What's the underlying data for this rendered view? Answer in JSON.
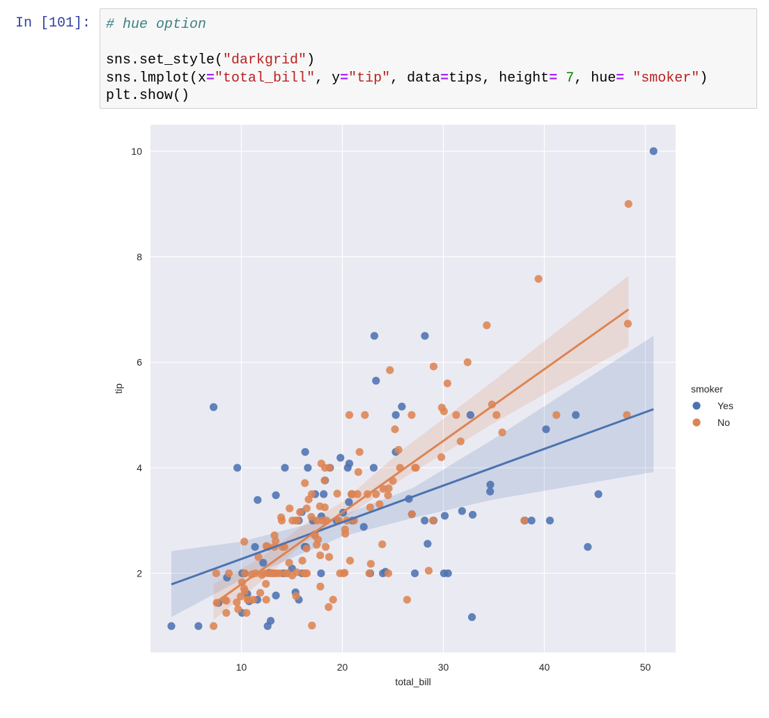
{
  "cell": {
    "prompt": "In [101]:",
    "code_lines": [
      [
        {
          "t": "# hue option",
          "c": "comment"
        }
      ],
      [],
      [
        {
          "t": "sns.set_style(",
          "c": "plain"
        },
        {
          "t": "\"darkgrid\"",
          "c": "str"
        },
        {
          "t": ")",
          "c": "plain"
        }
      ],
      [
        {
          "t": "sns.lmplot(x",
          "c": "plain"
        },
        {
          "t": "=",
          "c": "op"
        },
        {
          "t": "\"total_bill\"",
          "c": "str"
        },
        {
          "t": ", y",
          "c": "plain"
        },
        {
          "t": "=",
          "c": "op"
        },
        {
          "t": "\"tip\"",
          "c": "str"
        },
        {
          "t": ", data",
          "c": "plain"
        },
        {
          "t": "=",
          "c": "op"
        },
        {
          "t": "tips, height",
          "c": "plain"
        },
        {
          "t": "=",
          "c": "op"
        },
        {
          "t": " ",
          "c": "plain"
        },
        {
          "t": "7",
          "c": "num"
        },
        {
          "t": ", hue",
          "c": "plain"
        },
        {
          "t": "=",
          "c": "op"
        },
        {
          "t": " ",
          "c": "plain"
        },
        {
          "t": "\"smoker\"",
          "c": "str"
        },
        {
          "t": ")",
          "c": "plain"
        }
      ],
      [
        {
          "t": "plt.show()",
          "c": "plain"
        }
      ]
    ]
  },
  "chart_data": {
    "type": "scatter",
    "title": "",
    "xlabel": "total_bill",
    "ylabel": "tip",
    "xlim": [
      1,
      53
    ],
    "ylim": [
      0.5,
      10.5
    ],
    "xticks": [
      10,
      20,
      30,
      40,
      50
    ],
    "yticks": [
      2,
      4,
      6,
      8,
      10
    ],
    "grid": true,
    "background": "#eaeaf2",
    "legend": {
      "title": "smoker",
      "placement": "right"
    },
    "series": [
      {
        "name": "Yes",
        "color": "#4c72b0",
        "points": [
          [
            3.07,
            1.0
          ],
          [
            5.75,
            1.0
          ],
          [
            7.25,
            5.15
          ],
          [
            7.74,
            1.44
          ],
          [
            8.58,
            1.92
          ],
          [
            9.6,
            4.0
          ],
          [
            10.07,
            1.25
          ],
          [
            10.09,
            2.0
          ],
          [
            10.33,
            2.0
          ],
          [
            10.59,
            1.61
          ],
          [
            10.77,
            1.47
          ],
          [
            11.35,
            2.5
          ],
          [
            11.59,
            1.5
          ],
          [
            11.61,
            3.39
          ],
          [
            12.16,
            2.2
          ],
          [
            12.6,
            1.0
          ],
          [
            12.9,
            1.1
          ],
          [
            12.74,
            2.01
          ],
          [
            13.42,
            3.48
          ],
          [
            13.42,
            1.58
          ],
          [
            14.15,
            2.0
          ],
          [
            14.31,
            4.0
          ],
          [
            15.02,
            2.09
          ],
          [
            15.36,
            1.64
          ],
          [
            15.69,
            1.5
          ],
          [
            15.69,
            3.0
          ],
          [
            15.98,
            3.16
          ],
          [
            16.27,
            2.5
          ],
          [
            16.4,
            2.5
          ],
          [
            16.32,
            4.3
          ],
          [
            16.58,
            4.0
          ],
          [
            16.0,
            2.0
          ],
          [
            17.07,
            3.0
          ],
          [
            17.31,
            3.5
          ],
          [
            17.89,
            2.0
          ],
          [
            17.92,
            3.08
          ],
          [
            18.15,
            3.5
          ],
          [
            18.29,
            3.76
          ],
          [
            18.78,
            4.0
          ],
          [
            19.44,
            3.0
          ],
          [
            19.81,
            4.19
          ],
          [
            20.08,
            3.15
          ],
          [
            20.53,
            4.0
          ],
          [
            20.69,
            4.08
          ],
          [
            20.65,
            3.35
          ],
          [
            20.92,
            3.5
          ],
          [
            21.01,
            3.0
          ],
          [
            22.12,
            2.88
          ],
          [
            22.76,
            2.0
          ],
          [
            23.1,
            4.0
          ],
          [
            23.17,
            6.5
          ],
          [
            23.33,
            5.65
          ],
          [
            24.01,
            2.0
          ],
          [
            24.27,
            2.03
          ],
          [
            25.29,
            5.0
          ],
          [
            25.28,
            4.3
          ],
          [
            25.89,
            5.16
          ],
          [
            26.59,
            3.41
          ],
          [
            26.88,
            3.12
          ],
          [
            27.18,
            2.0
          ],
          [
            28.15,
            3.0
          ],
          [
            28.17,
            6.5
          ],
          [
            28.44,
            2.56
          ],
          [
            29.03,
            3.0
          ],
          [
            30.06,
            2.0
          ],
          [
            30.46,
            2.0
          ],
          [
            30.14,
            3.09
          ],
          [
            31.85,
            3.18
          ],
          [
            32.68,
            5.0
          ],
          [
            32.9,
            3.11
          ],
          [
            32.83,
            1.17
          ],
          [
            34.63,
            3.55
          ],
          [
            34.65,
            3.68
          ],
          [
            38.07,
            3.0
          ],
          [
            38.73,
            3.0
          ],
          [
            40.17,
            4.73
          ],
          [
            40.55,
            3.0
          ],
          [
            43.11,
            5.0
          ],
          [
            44.3,
            2.5
          ],
          [
            45.35,
            3.5
          ],
          [
            50.81,
            10.0
          ]
        ],
        "fit": {
          "x": [
            3.07,
            50.81
          ],
          "y": [
            1.79,
            5.11
          ]
        },
        "ci_upper": [
          [
            3.07,
            2.42
          ],
          [
            10,
            2.6
          ],
          [
            20,
            3.1
          ],
          [
            27,
            3.62
          ],
          [
            35,
            4.55
          ],
          [
            50.81,
            6.5
          ]
        ],
        "ci_lower": [
          [
            3.07,
            1.17
          ],
          [
            10,
            1.88
          ],
          [
            20,
            2.7
          ],
          [
            27,
            3.05
          ],
          [
            35,
            3.4
          ],
          [
            50.81,
            3.92
          ]
        ]
      },
      {
        "name": "No",
        "color": "#dd8452",
        "points": [
          [
            7.25,
            1.0
          ],
          [
            7.51,
            2.0
          ],
          [
            7.56,
            1.44
          ],
          [
            8.35,
            1.5
          ],
          [
            8.51,
            1.25
          ],
          [
            8.52,
            1.48
          ],
          [
            8.77,
            2.0
          ],
          [
            9.55,
            1.45
          ],
          [
            9.68,
            1.32
          ],
          [
            9.94,
            1.56
          ],
          [
            10.07,
            1.83
          ],
          [
            10.27,
            1.71
          ],
          [
            10.29,
            2.6
          ],
          [
            10.34,
            1.66
          ],
          [
            10.33,
            2.0
          ],
          [
            10.51,
            1.25
          ],
          [
            10.63,
            1.5
          ],
          [
            10.65,
            1.5
          ],
          [
            11.02,
            1.98
          ],
          [
            11.17,
            1.5
          ],
          [
            11.38,
            2.0
          ],
          [
            11.69,
            2.31
          ],
          [
            11.87,
            1.63
          ],
          [
            12.02,
            1.97
          ],
          [
            12.26,
            2.0
          ],
          [
            12.43,
            1.8
          ],
          [
            12.46,
            1.5
          ],
          [
            12.48,
            2.52
          ],
          [
            12.54,
            2.5
          ],
          [
            12.66,
            2.5
          ],
          [
            12.69,
            2.0
          ],
          [
            13.0,
            2.0
          ],
          [
            13.03,
            2.0
          ],
          [
            13.13,
            2.0
          ],
          [
            13.27,
            2.5
          ],
          [
            13.28,
            2.72
          ],
          [
            13.37,
            2.0
          ],
          [
            13.39,
            2.61
          ],
          [
            13.51,
            2.0
          ],
          [
            13.81,
            2.0
          ],
          [
            13.94,
            3.06
          ],
          [
            14.0,
            3.0
          ],
          [
            14.07,
            2.5
          ],
          [
            14.26,
            2.5
          ],
          [
            14.48,
            2.0
          ],
          [
            14.52,
            2.0
          ],
          [
            14.73,
            2.2
          ],
          [
            14.78,
            3.23
          ],
          [
            15.04,
            1.96
          ],
          [
            15.06,
            3.0
          ],
          [
            15.38,
            3.0
          ],
          [
            15.42,
            1.57
          ],
          [
            15.48,
            2.02
          ],
          [
            15.53,
            3.0
          ],
          [
            15.81,
            3.16
          ],
          [
            16.04,
            2.24
          ],
          [
            16.21,
            2.0
          ],
          [
            16.29,
            3.71
          ],
          [
            16.31,
            2.0
          ],
          [
            16.45,
            2.47
          ],
          [
            16.47,
            3.23
          ],
          [
            16.49,
            2.0
          ],
          [
            16.66,
            3.4
          ],
          [
            16.93,
            3.07
          ],
          [
            16.97,
            3.5
          ],
          [
            16.99,
            1.01
          ],
          [
            17.26,
            2.74
          ],
          [
            17.29,
            2.71
          ],
          [
            17.46,
            2.54
          ],
          [
            17.51,
            3.0
          ],
          [
            17.59,
            2.64
          ],
          [
            17.78,
            3.27
          ],
          [
            17.81,
            2.34
          ],
          [
            17.82,
            1.75
          ],
          [
            17.92,
            4.08
          ],
          [
            18.04,
            3.0
          ],
          [
            18.24,
            3.76
          ],
          [
            18.26,
            3.25
          ],
          [
            18.28,
            4.0
          ],
          [
            18.35,
            2.5
          ],
          [
            18.43,
            3.0
          ],
          [
            18.64,
            1.36
          ],
          [
            18.69,
            2.31
          ],
          [
            18.71,
            4.0
          ],
          [
            19.08,
            1.5
          ],
          [
            19.49,
            3.51
          ],
          [
            19.65,
            3.0
          ],
          [
            19.77,
            2.0
          ],
          [
            20.23,
            2.01
          ],
          [
            20.27,
            2.83
          ],
          [
            20.29,
            2.75
          ],
          [
            20.45,
            3.0
          ],
          [
            20.76,
            2.24
          ],
          [
            20.9,
            3.5
          ],
          [
            21.01,
            3.5
          ],
          [
            21.16,
            3.0
          ],
          [
            21.5,
            3.5
          ],
          [
            21.58,
            3.92
          ],
          [
            21.7,
            4.3
          ],
          [
            22.23,
            5.0
          ],
          [
            22.49,
            3.5
          ],
          [
            22.67,
            2.0
          ],
          [
            22.75,
            3.25
          ],
          [
            23.68,
            3.31
          ],
          [
            23.95,
            2.55
          ],
          [
            24.06,
            3.6
          ],
          [
            24.55,
            2.0
          ],
          [
            24.71,
            5.85
          ],
          [
            25.0,
            3.75
          ],
          [
            25.56,
            4.34
          ],
          [
            25.71,
            4.0
          ],
          [
            26.41,
            1.5
          ],
          [
            26.88,
            3.12
          ],
          [
            27.2,
            4.0
          ],
          [
            27.28,
            4.0
          ],
          [
            28.55,
            2.05
          ],
          [
            28.97,
            3.0
          ],
          [
            29.8,
            4.2
          ],
          [
            29.85,
            5.14
          ],
          [
            30.4,
            5.6
          ],
          [
            31.27,
            5.0
          ],
          [
            31.71,
            4.5
          ],
          [
            32.4,
            6.0
          ],
          [
            34.3,
            6.7
          ],
          [
            34.81,
            5.2
          ],
          [
            35.26,
            5.0
          ],
          [
            35.83,
            4.67
          ],
          [
            38.01,
            3.0
          ],
          [
            39.42,
            7.58
          ],
          [
            41.19,
            5.0
          ],
          [
            48.17,
            5.0
          ],
          [
            48.27,
            6.73
          ],
          [
            48.33,
            9.0
          ],
          [
            20.69,
            5.0
          ],
          [
            23.33,
            3.5
          ],
          [
            24.59,
            3.61
          ],
          [
            25.21,
            4.73
          ],
          [
            26.86,
            5.0
          ],
          [
            29.03,
            5.92
          ],
          [
            30.06,
            5.07
          ],
          [
            22.82,
            2.18
          ],
          [
            24.52,
            3.48
          ],
          [
            20.1,
            2.0
          ]
        ],
        "fit": {
          "x": [
            7.25,
            48.33
          ],
          "y": [
            1.42,
            7.0
          ]
        },
        "ci_upper": [
          [
            7.25,
            1.8
          ],
          [
            12,
            2.3
          ],
          [
            16,
            2.9
          ],
          [
            20,
            3.35
          ],
          [
            26,
            4.35
          ],
          [
            35,
            5.65
          ],
          [
            48.33,
            7.64
          ]
        ],
        "ci_lower": [
          [
            7.25,
            1.12
          ],
          [
            12,
            1.85
          ],
          [
            16,
            2.55
          ],
          [
            20,
            3.02
          ],
          [
            26,
            3.8
          ],
          [
            35,
            4.85
          ],
          [
            48.33,
            6.3
          ]
        ]
      }
    ]
  }
}
